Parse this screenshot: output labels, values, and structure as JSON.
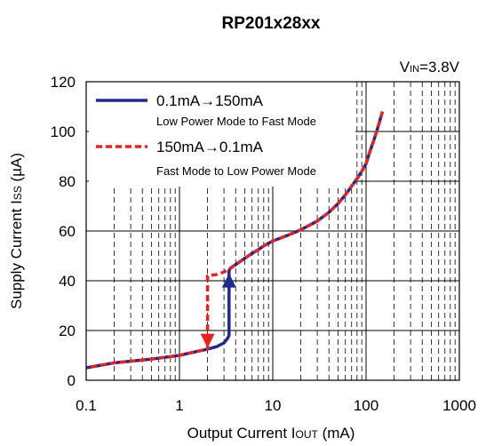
{
  "chart_data": {
    "type": "line",
    "title": "RP201x28xx",
    "condition": {
      "main": "V",
      "sub": "IN",
      "rest": "=3.8V"
    },
    "xlabel": {
      "pre": "Output Current I",
      "sub": "OUT",
      "post": " (mA)"
    },
    "ylabel": {
      "pre": "Supply Current I",
      "sub": "SS",
      "post": " (µA)"
    },
    "x_scale": "log",
    "xlim": [
      0.1,
      1000
    ],
    "ylim": [
      0,
      120
    ],
    "x_ticks": [
      0.1,
      1,
      10,
      100,
      1000
    ],
    "x_tick_labels": [
      "0.1",
      "1",
      "10",
      "100",
      "1000"
    ],
    "y_ticks": [
      0,
      20,
      40,
      60,
      80,
      100,
      120
    ],
    "y_tick_labels": [
      "0",
      "20",
      "40",
      "60",
      "80",
      "100",
      "120"
    ],
    "grid": true,
    "legend_position": "top-left",
    "series": [
      {
        "name": "0.1mA→150mA",
        "description": "Low Power Mode to Fast Mode",
        "color": "#1f2a8c",
        "style": "solid",
        "x": [
          0.1,
          0.2,
          0.5,
          1,
          1.5,
          2,
          2.5,
          3,
          3.3,
          3.4,
          3.4,
          3.5,
          4,
          5,
          6,
          7,
          8,
          10,
          15,
          20,
          30,
          40,
          50,
          60,
          70,
          80,
          90,
          100,
          110,
          120,
          130,
          150
        ],
        "y": [
          5,
          7,
          8.5,
          10,
          11.5,
          12.5,
          13.5,
          15,
          17,
          18,
          44,
          45,
          46.5,
          49,
          51,
          52.5,
          54,
          56,
          58.5,
          60.5,
          64,
          67.5,
          71,
          74.5,
          78,
          81,
          84,
          87,
          92,
          96,
          100,
          108
        ]
      },
      {
        "name": "150mA→0.1mA",
        "description": "Fast Mode to Low Power Mode",
        "color": "#e8231f",
        "style": "dashed",
        "x": [
          150,
          130,
          120,
          110,
          100,
          90,
          80,
          70,
          60,
          50,
          40,
          30,
          20,
          15,
          10,
          8,
          7,
          6,
          5,
          4,
          3.4,
          3,
          2.5,
          2,
          2,
          1.5,
          1,
          0.5,
          0.2,
          0.1
        ],
        "y": [
          108,
          100,
          96,
          92,
          87,
          84,
          81,
          78,
          74.5,
          71,
          67.5,
          64,
          60.5,
          58.5,
          56,
          54,
          52.5,
          51,
          49,
          46.5,
          44.5,
          43.5,
          42.5,
          42,
          12.5,
          11.5,
          10,
          8.5,
          7,
          5
        ]
      }
    ],
    "arrows": [
      {
        "series": "0.1mA→150mA",
        "x": 3.4,
        "from_y": 17,
        "to_y": 43,
        "direction": "up"
      },
      {
        "series": "150mA→0.1mA",
        "x": 2,
        "from_y": 42,
        "to_y": 13,
        "direction": "down"
      }
    ]
  }
}
